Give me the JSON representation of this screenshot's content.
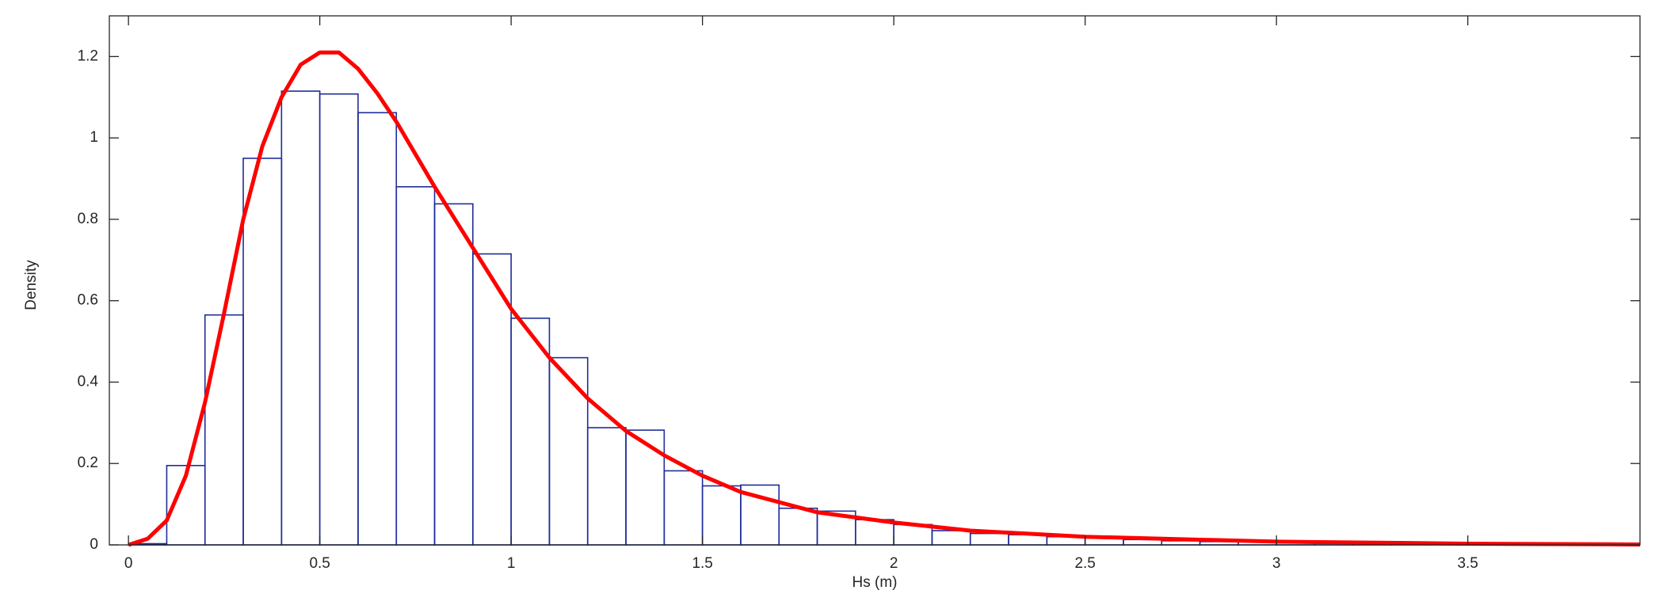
{
  "chart_data": {
    "type": "histogram",
    "x_label": "Hs (m)",
    "y_label": "Density",
    "bins": [
      0,
      0.1,
      0.2,
      0.3,
      0.4,
      0.5,
      0.6,
      0.7,
      0.8,
      0.9,
      1.0,
      1.1,
      1.2,
      1.3,
      1.4,
      1.5,
      1.6,
      1.7,
      1.8,
      1.9,
      2.0,
      2.1,
      2.2,
      2.3,
      2.4,
      2.5,
      2.6,
      2.7,
      2.8,
      2.9,
      3.0,
      3.1,
      3.2,
      3.3,
      3.4,
      3.5,
      3.6
    ],
    "values": [
      0.003,
      0.195,
      0.565,
      0.95,
      1.115,
      1.108,
      1.062,
      0.88,
      0.838,
      0.715,
      0.557,
      0.46,
      0.288,
      0.282,
      0.182,
      0.145,
      0.147,
      0.09,
      0.083,
      0.062,
      0.05,
      0.035,
      0.028,
      0.025,
      0.02,
      0.017,
      0.013,
      0.01,
      0.008,
      0.008,
      0.01,
      0.006,
      0.004,
      0.003,
      0.003,
      0.003
    ],
    "color": "#1f2d9a",
    "curve": {
      "color": "#ff0000",
      "x": [
        0,
        0.05,
        0.1,
        0.15,
        0.2,
        0.25,
        0.3,
        0.35,
        0.4,
        0.45,
        0.5,
        0.55,
        0.6,
        0.65,
        0.7,
        0.8,
        0.9,
        1.0,
        1.1,
        1.2,
        1.3,
        1.4,
        1.5,
        1.6,
        1.8,
        2.0,
        2.2,
        2.5,
        3.0,
        3.5,
        3.95
      ],
      "values": [
        0,
        0.015,
        0.06,
        0.17,
        0.35,
        0.57,
        0.8,
        0.98,
        1.1,
        1.18,
        1.21,
        1.21,
        1.17,
        1.11,
        1.04,
        0.88,
        0.73,
        0.58,
        0.46,
        0.36,
        0.28,
        0.22,
        0.17,
        0.13,
        0.08,
        0.055,
        0.035,
        0.02,
        0.008,
        0.003,
        0.001
      ]
    },
    "xlim": [
      -0.05,
      3.95
    ],
    "ylim": [
      0,
      1.3
    ],
    "xticks": [
      0,
      0.5,
      1,
      1.5,
      2,
      2.5,
      3,
      3.5
    ],
    "yticks": [
      0,
      0.2,
      0.4,
      0.6,
      0.8,
      1,
      1.2
    ]
  }
}
